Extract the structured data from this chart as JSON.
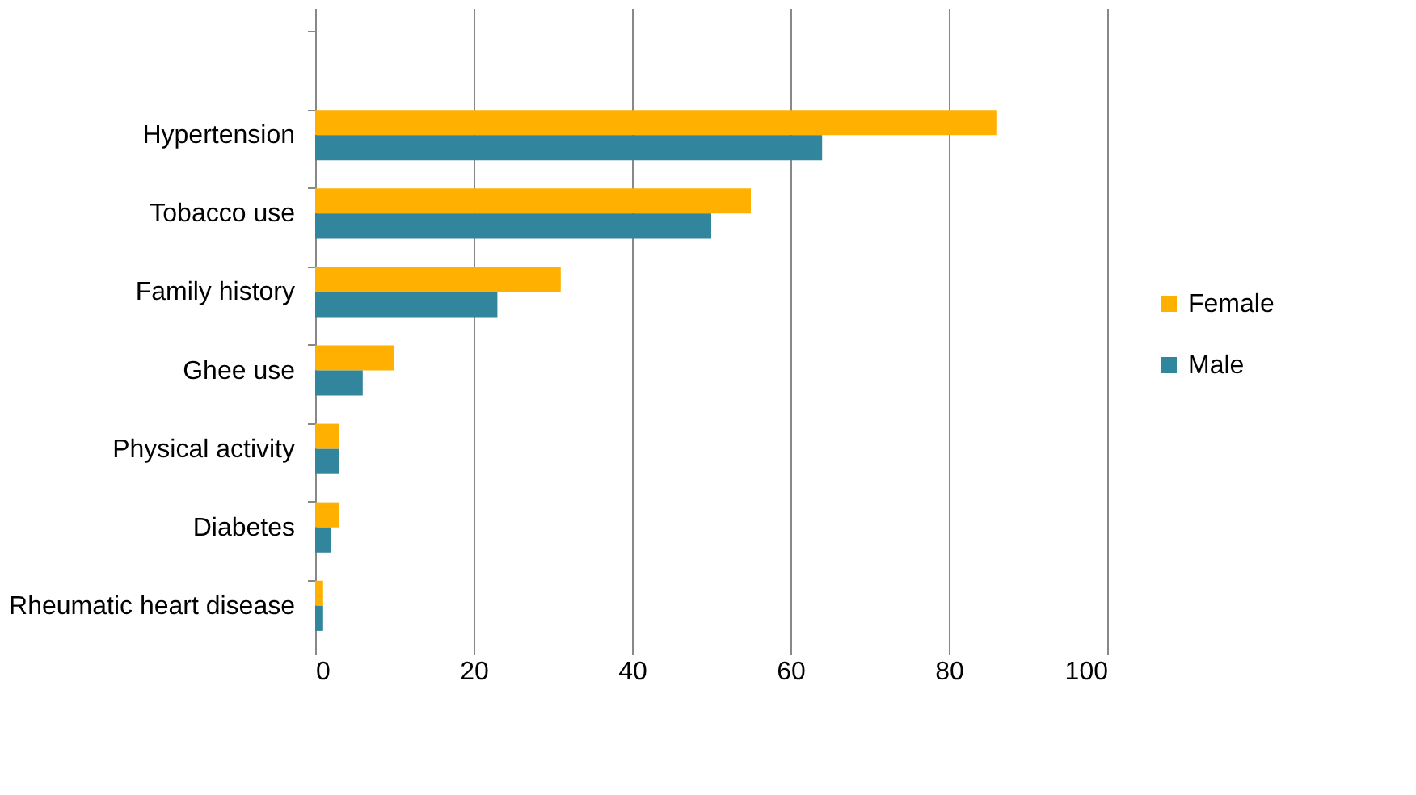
{
  "chart_data": {
    "type": "bar",
    "orientation": "horizontal",
    "categories": [
      null,
      "Hypertension",
      "Tobacco use",
      "Family history",
      "Ghee use",
      "Physical activity",
      "Diabetes",
      "Rheumatic heart disease"
    ],
    "series": [
      {
        "name": "Female",
        "color": "#ffb000",
        "values": [
          null,
          86,
          55,
          31,
          10,
          3,
          3,
          1
        ]
      },
      {
        "name": "Male",
        "color": "#31859c",
        "values": [
          null,
          64,
          50,
          23,
          6,
          3,
          2,
          1
        ]
      }
    ],
    "xlim": [
      0,
      100
    ],
    "xticks": [
      0,
      20,
      40,
      60,
      80,
      100
    ],
    "grid": "x",
    "legend": "right"
  }
}
